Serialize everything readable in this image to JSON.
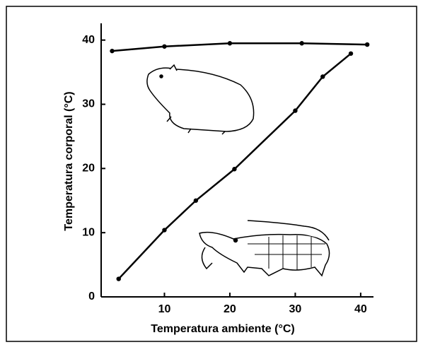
{
  "chart_data": {
    "type": "line",
    "xlabel": "Temperatura ambiente (°C)",
    "ylabel": "Temperatura corporal (°C)",
    "xlim": [
      0,
      42.5
    ],
    "xticks": [
      10,
      20,
      30,
      40
    ],
    "ylim": [
      0,
      42.5
    ],
    "yticks": [
      0,
      10,
      20,
      30,
      40
    ],
    "series": [
      {
        "color": "#000000",
        "x": [
          2,
          10,
          20,
          31,
          41
        ],
        "values": [
          38.3,
          39.0,
          39.5,
          39.5,
          39.3
        ]
      },
      {
        "color": "#000000",
        "x": [
          3,
          10,
          14.8,
          20.7,
          30,
          34.2,
          38.5
        ],
        "values": [
          2.8,
          10.4,
          15.0,
          19.9,
          29.0,
          34.3,
          37.9
        ]
      }
    ]
  }
}
